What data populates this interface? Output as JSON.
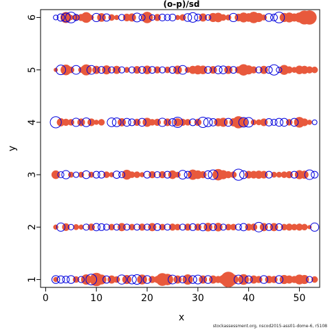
{
  "chart_data": {
    "type": "scatter",
    "title": "(o-p)/sd",
    "xlabel": "x",
    "ylabel": "y",
    "xlim": [
      -1,
      54
    ],
    "ylim": [
      0.85,
      6.15
    ],
    "xticks": [
      0,
      10,
      20,
      30,
      40,
      50
    ],
    "yticks": [
      1,
      2,
      3,
      4,
      5,
      6
    ],
    "grid": false,
    "colors": {
      "positive": "#E8593C",
      "negative": "#0000DD"
    },
    "encoding": "bubble area proportional to |residual|; filled red = positive, open blue = negative",
    "rows": [
      {
        "y": 6,
        "pos": [
          [
            4,
            1.5
          ],
          [
            5,
            0.3
          ],
          [
            6,
            0.4
          ],
          [
            7,
            0.6
          ],
          [
            8,
            1.4
          ],
          [
            9,
            0.3
          ],
          [
            11,
            0.9
          ],
          [
            13,
            0.5
          ],
          [
            14,
            0.3
          ],
          [
            16,
            0.7
          ],
          [
            17,
            0.8
          ],
          [
            20,
            1.6
          ],
          [
            22,
            0.6
          ],
          [
            26,
            0.3
          ],
          [
            27,
            0.5
          ],
          [
            31,
            0.8
          ],
          [
            33,
            1.0
          ],
          [
            34,
            1.1
          ],
          [
            35,
            0.5
          ],
          [
            36,
            0.4
          ],
          [
            38,
            0.7
          ],
          [
            39,
            1.2
          ],
          [
            40,
            0.9
          ],
          [
            41,
            1.6
          ],
          [
            42,
            1.0
          ],
          [
            43,
            0.4
          ],
          [
            47,
            1.0
          ],
          [
            48,
            1.2
          ],
          [
            49,
            0.8
          ],
          [
            50,
            1.2
          ],
          [
            51,
            2.4
          ],
          [
            52,
            2.5
          ]
        ]
      },
      {
        "y": 6,
        "neg": [
          [
            2,
            0.3
          ],
          [
            3,
            0.7
          ],
          [
            4,
            1.0
          ],
          [
            5,
            1.5
          ],
          [
            6,
            0.5
          ],
          [
            10,
            0.9
          ],
          [
            12,
            0.7
          ],
          [
            15,
            0.5
          ],
          [
            18,
            1.0
          ],
          [
            19,
            0.5
          ],
          [
            21,
            0.4
          ],
          [
            23,
            0.6
          ],
          [
            24,
            0.5
          ],
          [
            25,
            0.6
          ],
          [
            28,
            0.8
          ],
          [
            29,
            1.2
          ],
          [
            30,
            0.6
          ],
          [
            32,
            0.4
          ],
          [
            37,
            0.9
          ],
          [
            44,
            0.8
          ],
          [
            45,
            0.6
          ],
          [
            46,
            1.5
          ]
        ]
      },
      {
        "y": 5,
        "pos": [
          [
            2,
            0.2
          ],
          [
            4,
            1.4
          ],
          [
            5,
            0.5
          ],
          [
            7,
            0.4
          ],
          [
            8,
            1.5
          ],
          [
            10,
            0.8
          ],
          [
            12,
            1.0
          ],
          [
            14,
            0.8
          ],
          [
            16,
            0.4
          ],
          [
            18,
            0.7
          ],
          [
            20,
            0.9
          ],
          [
            22,
            0.6
          ],
          [
            24,
            0.5
          ],
          [
            26,
            0.9
          ],
          [
            28,
            0.4
          ],
          [
            29,
            0.8
          ],
          [
            30,
            1.0
          ],
          [
            31,
            0.9
          ],
          [
            33,
            0.7
          ],
          [
            36,
            0.8
          ],
          [
            38,
            0.6
          ],
          [
            39,
            1.6
          ],
          [
            40,
            1.0
          ],
          [
            41,
            0.6
          ],
          [
            43,
            0.8
          ],
          [
            47,
            1.2
          ],
          [
            48,
            0.6
          ],
          [
            49,
            0.4
          ],
          [
            50,
            0.9
          ],
          [
            51,
            0.8
          ],
          [
            52,
            0.6
          ],
          [
            53,
            0.5
          ]
        ]
      },
      {
        "y": 5,
        "neg": [
          [
            3,
            1.2
          ],
          [
            6,
            1.0
          ],
          [
            9,
            1.0
          ],
          [
            11,
            0.6
          ],
          [
            13,
            0.5
          ],
          [
            15,
            0.5
          ],
          [
            17,
            0.5
          ],
          [
            19,
            0.6
          ],
          [
            21,
            0.6
          ],
          [
            23,
            0.5
          ],
          [
            25,
            0.6
          ],
          [
            27,
            1.0
          ],
          [
            32,
            0.6
          ],
          [
            34,
            0.8
          ],
          [
            35,
            0.8
          ],
          [
            37,
            0.6
          ],
          [
            42,
            0.5
          ],
          [
            44,
            0.6
          ],
          [
            45,
            1.4
          ],
          [
            46,
            0.4
          ]
        ]
      },
      {
        "y": 4,
        "pos": [
          [
            3,
            0.8
          ],
          [
            4,
            0.6
          ],
          [
            5,
            0.5
          ],
          [
            7,
            0.7
          ],
          [
            9,
            0.7
          ],
          [
            10,
            0.3
          ],
          [
            11,
            0.5
          ],
          [
            15,
            0.8
          ],
          [
            18,
            0.6
          ],
          [
            20,
            1.0
          ],
          [
            21,
            0.5
          ],
          [
            22,
            0.6
          ],
          [
            24,
            0.7
          ],
          [
            26,
            0.8
          ],
          [
            27,
            0.6
          ],
          [
            28,
            0.5
          ],
          [
            30,
            0.6
          ],
          [
            34,
            0.8
          ],
          [
            35,
            1.0
          ],
          [
            37,
            0.8
          ],
          [
            38,
            1.8
          ],
          [
            39,
            0.9
          ],
          [
            41,
            0.4
          ],
          [
            42,
            0.4
          ],
          [
            43,
            0.7
          ],
          [
            48,
            0.5
          ],
          [
            50,
            1.4
          ],
          [
            51,
            0.7
          ],
          [
            52,
            0.3
          ]
        ]
      },
      {
        "y": 4,
        "neg": [
          [
            2,
            1.6
          ],
          [
            6,
            0.9
          ],
          [
            8,
            1.0
          ],
          [
            13,
            1.0
          ],
          [
            14,
            1.0
          ],
          [
            16,
            0.8
          ],
          [
            17,
            0.6
          ],
          [
            19,
            0.8
          ],
          [
            23,
            0.9
          ],
          [
            25,
            0.7
          ],
          [
            26,
            1.4
          ],
          [
            29,
            0.6
          ],
          [
            31,
            1.4
          ],
          [
            32,
            1.0
          ],
          [
            33,
            0.7
          ],
          [
            36,
            0.8
          ],
          [
            39,
            1.2
          ],
          [
            40,
            1.2
          ],
          [
            44,
            0.7
          ],
          [
            45,
            0.5
          ],
          [
            46,
            0.8
          ],
          [
            47,
            0.8
          ],
          [
            49,
            0.8
          ],
          [
            53,
            0.3
          ]
        ]
      },
      {
        "y": 3,
        "pos": [
          [
            2,
            0.9
          ],
          [
            5,
            0.4
          ],
          [
            7,
            0.4
          ],
          [
            9,
            0.4
          ],
          [
            12,
            0.5
          ],
          [
            13,
            0.3
          ],
          [
            16,
            1.2
          ],
          [
            17,
            0.5
          ],
          [
            18,
            0.5
          ],
          [
            19,
            0.3
          ],
          [
            21,
            0.6
          ],
          [
            23,
            0.6
          ],
          [
            25,
            0.9
          ],
          [
            26,
            0.4
          ],
          [
            29,
            1.3
          ],
          [
            30,
            0.9
          ],
          [
            31,
            0.6
          ],
          [
            34,
            1.6
          ],
          [
            35,
            1.0
          ],
          [
            36,
            0.6
          ],
          [
            37,
            0.5
          ],
          [
            40,
            0.7
          ],
          [
            41,
            0.7
          ],
          [
            42,
            0.8
          ],
          [
            43,
            0.7
          ],
          [
            45,
            0.4
          ],
          [
            46,
            0.4
          ],
          [
            47,
            0.5
          ],
          [
            48,
            0.6
          ],
          [
            50,
            1.0
          ],
          [
            51,
            0.8
          ]
        ]
      },
      {
        "y": 3,
        "neg": [
          [
            3,
            0.5
          ],
          [
            4,
            0.9
          ],
          [
            6,
            0.4
          ],
          [
            8,
            0.8
          ],
          [
            10,
            0.6
          ],
          [
            11,
            0.6
          ],
          [
            14,
            0.7
          ],
          [
            15,
            0.5
          ],
          [
            20,
            0.6
          ],
          [
            22,
            0.5
          ],
          [
            24,
            0.6
          ],
          [
            27,
            1.0
          ],
          [
            28,
            0.6
          ],
          [
            32,
            0.8
          ],
          [
            33,
            1.2
          ],
          [
            38,
            1.6
          ],
          [
            39,
            0.8
          ],
          [
            44,
            0.6
          ],
          [
            49,
            0.6
          ],
          [
            52,
            1.2
          ],
          [
            53,
            0.6
          ]
        ]
      },
      {
        "y": 2,
        "pos": [
          [
            2,
            0.3
          ],
          [
            4,
            0.7
          ],
          [
            6,
            0.4
          ],
          [
            7,
            0.3
          ],
          [
            9,
            0.6
          ],
          [
            13,
            0.5
          ],
          [
            15,
            0.8
          ],
          [
            17,
            0.5
          ],
          [
            19,
            0.6
          ],
          [
            21,
            0.8
          ],
          [
            23,
            0.5
          ],
          [
            25,
            0.6
          ],
          [
            26,
            0.5
          ],
          [
            28,
            0.6
          ],
          [
            30,
            0.6
          ],
          [
            32,
            0.9
          ],
          [
            34,
            0.9
          ],
          [
            36,
            0.5
          ],
          [
            37,
            0.5
          ],
          [
            40,
            0.6
          ],
          [
            41,
            0.6
          ],
          [
            43,
            0.8
          ],
          [
            45,
            0.8
          ],
          [
            47,
            0.5
          ],
          [
            48,
            0.6
          ],
          [
            49,
            0.5
          ],
          [
            50,
            0.6
          ],
          [
            51,
            0.5
          ],
          [
            52,
            0.2
          ]
        ]
      },
      {
        "y": 2,
        "neg": [
          [
            3,
            0.9
          ],
          [
            5,
            0.4
          ],
          [
            8,
            0.5
          ],
          [
            10,
            0.7
          ],
          [
            11,
            0.6
          ],
          [
            12,
            0.5
          ],
          [
            14,
            0.5
          ],
          [
            16,
            0.5
          ],
          [
            18,
            0.5
          ],
          [
            20,
            0.5
          ],
          [
            22,
            0.6
          ],
          [
            24,
            0.5
          ],
          [
            27,
            0.5
          ],
          [
            29,
            0.6
          ],
          [
            31,
            0.7
          ],
          [
            33,
            0.6
          ],
          [
            35,
            0.5
          ],
          [
            38,
            0.5
          ],
          [
            39,
            0.7
          ],
          [
            42,
            1.2
          ],
          [
            44,
            0.6
          ],
          [
            46,
            0.6
          ],
          [
            53,
            0.9
          ]
        ]
      },
      {
        "y": 1,
        "pos": [
          [
            2,
            0.3
          ],
          [
            6,
            0.5
          ],
          [
            8,
            1.3
          ],
          [
            10,
            2.2
          ],
          [
            11,
            1.2
          ],
          [
            13,
            0.8
          ],
          [
            14,
            0.5
          ],
          [
            16,
            1.0
          ],
          [
            19,
            1.2
          ],
          [
            21,
            0.6
          ],
          [
            22,
            0.6
          ],
          [
            23,
            2.0
          ],
          [
            24,
            1.6
          ],
          [
            26,
            0.8
          ],
          [
            28,
            1.3
          ],
          [
            31,
            0.8
          ],
          [
            33,
            0.8
          ],
          [
            34,
            0.6
          ],
          [
            35,
            1.0
          ],
          [
            36,
            3.0
          ],
          [
            37,
            1.2
          ],
          [
            39,
            1.4
          ],
          [
            41,
            0.8
          ],
          [
            42,
            0.6
          ],
          [
            44,
            0.7
          ],
          [
            45,
            0.6
          ],
          [
            47,
            1.0
          ],
          [
            48,
            0.8
          ],
          [
            49,
            0.6
          ],
          [
            50,
            1.2
          ],
          [
            51,
            1.0
          ],
          [
            53,
            0.5
          ]
        ]
      },
      {
        "y": 1,
        "neg": [
          [
            2,
            0.8
          ],
          [
            3,
            0.7
          ],
          [
            4,
            0.6
          ],
          [
            5,
            0.8
          ],
          [
            7,
            0.5
          ],
          [
            9,
            1.5
          ],
          [
            12,
            0.7
          ],
          [
            15,
            1.1
          ],
          [
            17,
            1.0
          ],
          [
            18,
            1.2
          ],
          [
            20,
            0.8
          ],
          [
            25,
            1.0
          ],
          [
            27,
            0.6
          ],
          [
            29,
            0.8
          ],
          [
            30,
            1.0
          ],
          [
            32,
            0.8
          ],
          [
            38,
            1.0
          ],
          [
            40,
            0.7
          ],
          [
            43,
            0.8
          ],
          [
            46,
            0.8
          ],
          [
            52,
            0.5
          ]
        ]
      }
    ]
  },
  "footnote": "stockassessment.org, nscod2015-ass01-dome-6, r5108"
}
